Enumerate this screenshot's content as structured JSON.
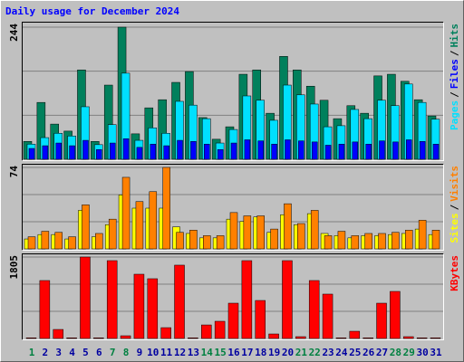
{
  "chart_data": [
    {
      "type": "bar",
      "title": "Daily usage for December 2024",
      "legend_separator": "/",
      "series": [
        {
          "name": "Pages",
          "color": "#00e0ff",
          "values": [
            28,
            40,
            48,
            43,
            97,
            27,
            64,
            159,
            35,
            58,
            48,
            107,
            100,
            75,
            30,
            55,
            117,
            109,
            72,
            137,
            119,
            102,
            60,
            62,
            92,
            75,
            109,
            99,
            139,
            105,
            74
          ]
        },
        {
          "name": "Files",
          "color": "#0000ff",
          "values": [
            20,
            25,
            30,
            25,
            35,
            18,
            30,
            38,
            22,
            28,
            25,
            35,
            33,
            28,
            18,
            30,
            36,
            34,
            28,
            36,
            34,
            32,
            26,
            28,
            32,
            28,
            34,
            32,
            36,
            33,
            28
          ]
        },
        {
          "name": "Hits",
          "color": "#00805c",
          "values": [
            33,
            105,
            65,
            52,
            165,
            33,
            137,
            244,
            47,
            95,
            110,
            142,
            162,
            77,
            37,
            60,
            157,
            165,
            85,
            190,
            165,
            135,
            109,
            75,
            99,
            85,
            154,
            157,
            144,
            110,
            80
          ]
        }
      ],
      "ylim": [
        0,
        244
      ],
      "yticks": [
        244
      ],
      "grid_lines": 3
    },
    {
      "type": "bar",
      "legend_separator": "/",
      "series": [
        {
          "name": "Sites",
          "color": "#ffff00",
          "values": [
            9,
            13,
            13,
            9,
            35,
            11,
            22,
            49,
            37,
            37,
            37,
            20,
            14,
            10,
            10,
            27,
            25,
            29,
            15,
            31,
            22,
            32,
            14,
            12,
            10,
            12,
            12,
            13,
            14,
            18,
            13
          ]
        },
        {
          "name": "Visits",
          "color": "#ff8000",
          "values": [
            11,
            16,
            15,
            11,
            40,
            14,
            27,
            65,
            43,
            52,
            74,
            15,
            17,
            12,
            12,
            33,
            30,
            30,
            18,
            41,
            23,
            35,
            12,
            16,
            12,
            14,
            14,
            15,
            17,
            26,
            17
          ]
        }
      ],
      "ylim": [
        0,
        74
      ],
      "yticks": [
        74
      ],
      "grid_lines": 3
    },
    {
      "type": "bar",
      "series": [
        {
          "name": "KBytes",
          "color": "#ff0000",
          "values": [
            15,
            1284,
            200,
            15,
            1805,
            15,
            1725,
            60,
            1424,
            1324,
            240,
            1625,
            15,
            300,
            381,
            782,
            1725,
            842,
            100,
            1725,
            40,
            1284,
            983,
            15,
            160,
            15,
            782,
            1043,
            40,
            15,
            15
          ]
        }
      ],
      "ylim": [
        0,
        1805
      ],
      "yticks": [
        1805
      ],
      "grid_lines": 3,
      "categories": [
        "1",
        "2",
        "3",
        "4",
        "5",
        "6",
        "7",
        "8",
        "9",
        "10",
        "11",
        "12",
        "13",
        "14",
        "15",
        "16",
        "17",
        "18",
        "19",
        "20",
        "21",
        "22",
        "23",
        "24",
        "25",
        "26",
        "27",
        "28",
        "29",
        "30",
        "31"
      ],
      "category_colors": [
        "#008040",
        "#0000a0",
        "#0000a0",
        "#0000a0",
        "#0000a0",
        "#0000a0",
        "#008040",
        "#008040",
        "#0000a0",
        "#0000a0",
        "#0000a0",
        "#0000a0",
        "#0000a0",
        "#008040",
        "#008040",
        "#0000a0",
        "#0000a0",
        "#0000a0",
        "#0000a0",
        "#0000a0",
        "#008040",
        "#008040",
        "#0000a0",
        "#0000a0",
        "#0000a0",
        "#0000a0",
        "#0000a0",
        "#008040",
        "#008040",
        "#0000a0",
        "#0000a0"
      ]
    }
  ]
}
